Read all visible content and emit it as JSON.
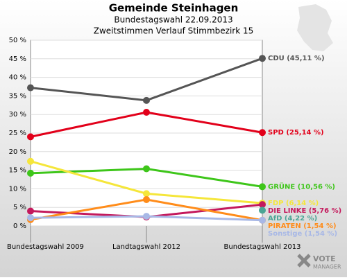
{
  "chart_data": {
    "type": "line",
    "title": "Gemeinde Steinhagen",
    "subtitle": [
      "Bundestagswahl 22.09.2013",
      "Zweitstimmen Verlauf Stimmbezirk 15"
    ],
    "categories": [
      "Bundestagswahl 2009",
      "Landtagswahl 2012",
      "Bundestagswahl 2013"
    ],
    "ylim": [
      0,
      50
    ],
    "yticks": [
      {
        "value": 0,
        "label": "0 %"
      },
      {
        "value": 5,
        "label": "5 %"
      },
      {
        "value": 10,
        "label": "10 %"
      },
      {
        "value": 15,
        "label": "15 %"
      },
      {
        "value": 20,
        "label": "20 %"
      },
      {
        "value": 25,
        "label": "25 %"
      },
      {
        "value": 30,
        "label": "30 %"
      },
      {
        "value": 35,
        "label": "35 %"
      },
      {
        "value": 40,
        "label": "40 %"
      },
      {
        "value": 45,
        "label": "45 %"
      },
      {
        "value": 50,
        "label": "50 %"
      }
    ],
    "grid": true,
    "series": [
      {
        "name": "CDU (45,11 %)",
        "color": "#555555",
        "values": [
          37.2,
          33.8,
          45.11
        ]
      },
      {
        "name": "SPD (25,14 %)",
        "color": "#e2001a",
        "values": [
          24.0,
          30.6,
          25.14
        ]
      },
      {
        "name": "GRÜNE (10,56 %)",
        "color": "#3ec61a",
        "values": [
          14.2,
          15.4,
          10.56
        ]
      },
      {
        "name": "FDP (6,14 %)",
        "color": "#f5e63a",
        "values": [
          17.4,
          8.7,
          6.14
        ]
      },
      {
        "name": "DIE LINKE (5,76 %)",
        "color": "#c4195c",
        "values": [
          4.0,
          2.4,
          5.76
        ]
      },
      {
        "name": "AfD (4,22 %)",
        "color": "#4aa595",
        "values": [
          null,
          null,
          4.22
        ]
      },
      {
        "name": "PIRATEN (1,54 %)",
        "color": "#ff8c1a",
        "values": [
          1.7,
          7.1,
          1.54
        ]
      },
      {
        "name": "Sonstige (1,54 %)",
        "color": "#a8b8e6",
        "values": [
          2.2,
          2.6,
          1.54
        ]
      }
    ],
    "logo": [
      "VOTE",
      "MANAGER"
    ]
  }
}
